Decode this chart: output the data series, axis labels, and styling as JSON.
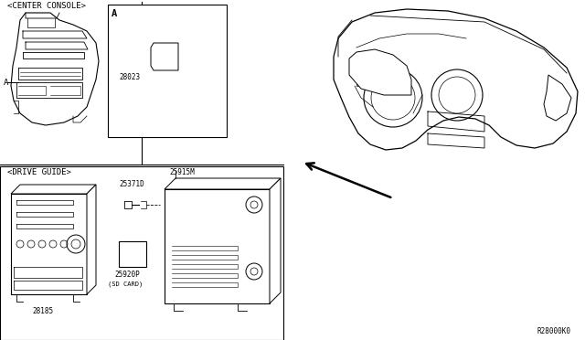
{
  "bg_color": "#ffffff",
  "line_color": "#000000",
  "label_center_console": "<CENTER CONSOLE>",
  "label_drive_guide": "<DRIVE GUIDE>",
  "label_a_ref": "A",
  "label_a_box": "A",
  "part_28023": "28023",
  "part_25915M": "25915M",
  "part_25371D": "25371D",
  "part_28185": "28185",
  "part_25920P": "25920P",
  "part_25920P_sub": "(SD CARD)",
  "diagram_code": "R28000K0",
  "font_size_label": 6.5,
  "font_size_part": 5.5,
  "font_size_code": 5.5
}
